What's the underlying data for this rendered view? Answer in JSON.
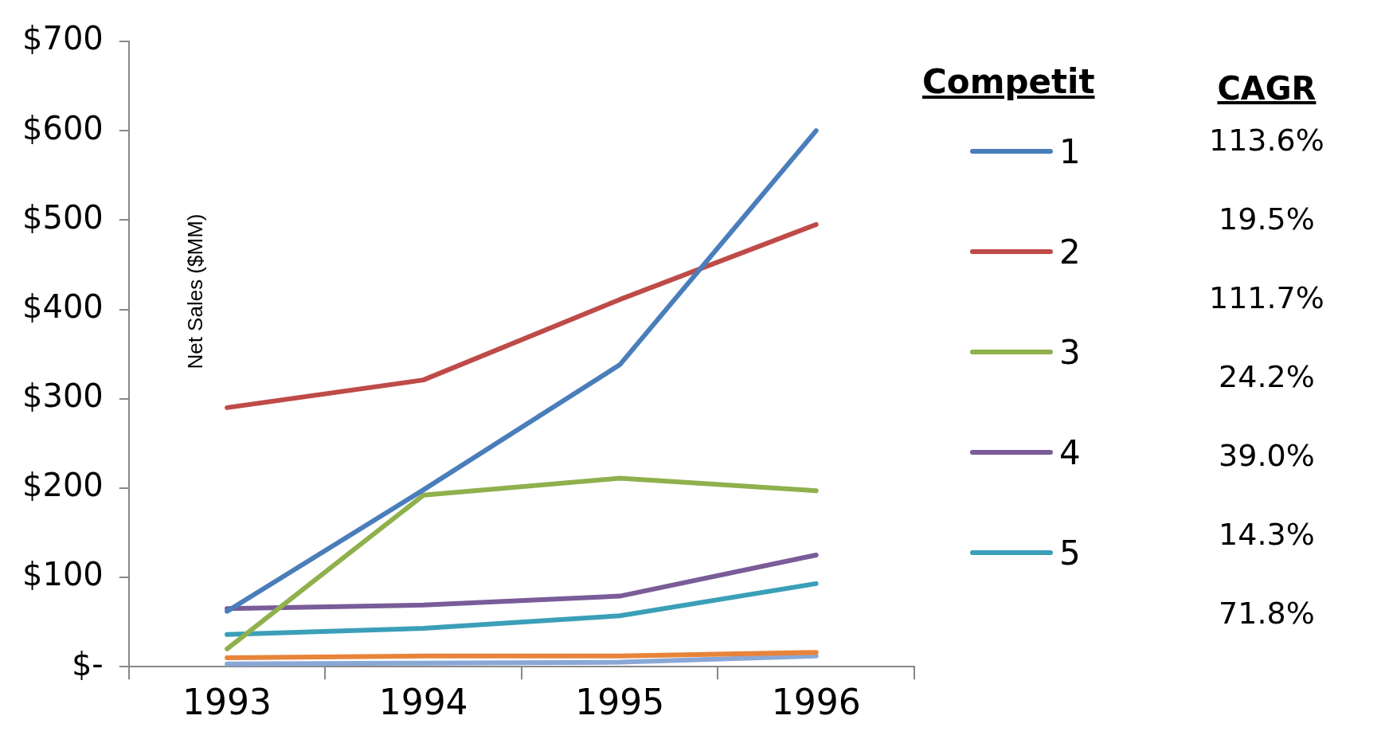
{
  "chart_data": {
    "type": "line",
    "ylabel": "Net Sales ($MM)",
    "legend_title": "Competit",
    "categories": [
      "1993",
      "1994",
      "1995",
      "1996"
    ],
    "series": [
      {
        "name": "1",
        "color": "#4a7ebb",
        "values": [
          62,
          198,
          338,
          600
        ]
      },
      {
        "name": "2",
        "color": "#be4b48",
        "values": [
          290,
          321,
          411,
          495
        ]
      },
      {
        "name": "3",
        "color": "#8fb04c",
        "values": [
          20,
          192,
          211,
          197
        ]
      },
      {
        "name": "4",
        "color": "#7a5c98",
        "values": [
          65,
          69,
          79,
          125
        ]
      },
      {
        "name": "5",
        "color": "#3b9fb8",
        "values": [
          36,
          43,
          57,
          93
        ]
      },
      {
        "color": "#e8843a",
        "values": [
          10,
          12,
          12,
          16
        ]
      },
      {
        "color": "#8aa8d6",
        "values": [
          3,
          4,
          5,
          12
        ]
      }
    ],
    "ylim": [
      0,
      700
    ],
    "yticks": [
      {
        "value": 0,
        "label": "$-"
      },
      {
        "value": 100,
        "label": "$100"
      },
      {
        "value": 200,
        "label": "$200"
      },
      {
        "value": 300,
        "label": "$300"
      },
      {
        "value": 400,
        "label": "$400"
      },
      {
        "value": 500,
        "label": "$500"
      },
      {
        "value": 600,
        "label": "$600"
      },
      {
        "value": 700,
        "label": "$700"
      }
    ],
    "grid": false,
    "legend": "right",
    "marker": "none",
    "line_style": "solid",
    "annotations": [
      "CAGR",
      "113.6%",
      "19.5%",
      "111.7%",
      "24.2%",
      "39.0%",
      "14.3%",
      "71.8%"
    ]
  }
}
